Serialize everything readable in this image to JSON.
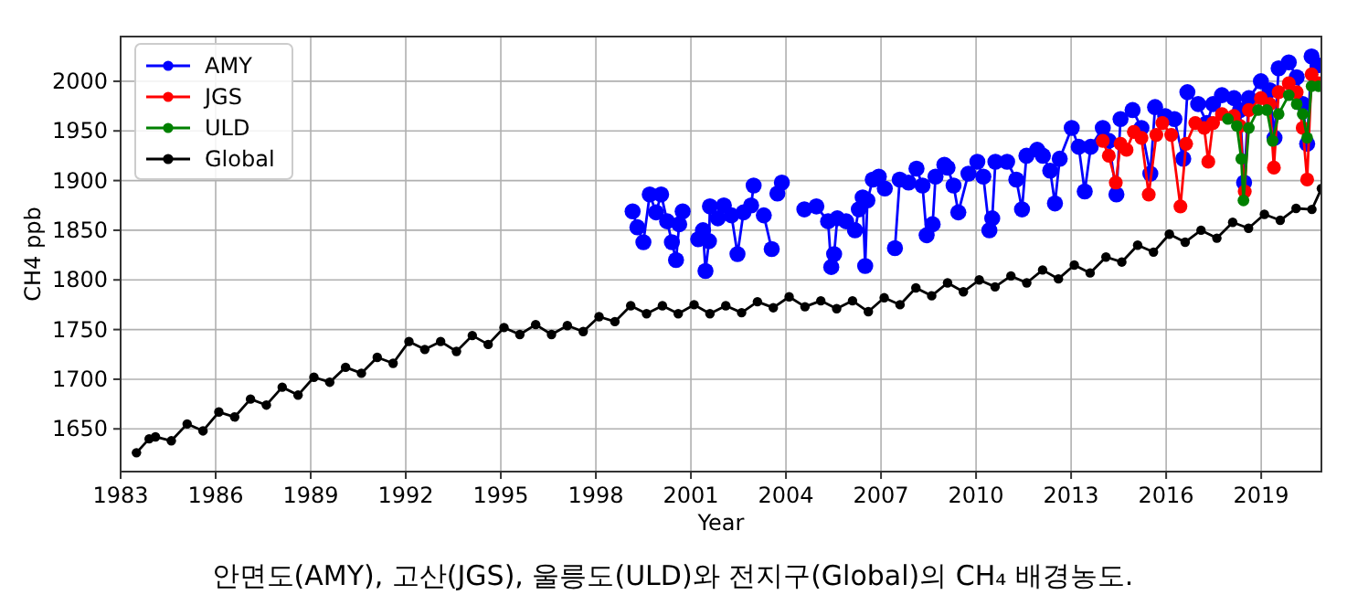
{
  "chart_data": {
    "type": "line",
    "xlabel": "Year",
    "ylabel": "CH4 ppb",
    "xlim": [
      1983,
      2020.9
    ],
    "ylim": [
      1607,
      2045
    ],
    "xticks": [
      1983,
      1986,
      1989,
      1992,
      1995,
      1998,
      2001,
      2004,
      2007,
      2010,
      2013,
      2016,
      2019
    ],
    "yticks": [
      1650,
      1700,
      1750,
      1800,
      1850,
      1900,
      1950,
      2000
    ],
    "grid": true,
    "legend": "top left",
    "marker": "circle",
    "line_style": "solid",
    "annotations": [
      "안면도(AMY), 고산(JGS), 울릉도(ULD)와 전지구(Global)의 CH₄ 배경농도."
    ],
    "series": [
      {
        "name": "AMY",
        "color": "#0000ff",
        "x": [
          1999.16,
          1999.31,
          1999.5,
          1999.7,
          1999.9,
          2000.06,
          2000.25,
          2000.4,
          2000.53,
          2000.63,
          2000.74,
          2000.98,
          2001.23,
          2001.38,
          2001.46,
          2001.57,
          2001.6,
          2001.85,
          2002.04,
          2002.28,
          2002.47,
          2002.66,
          2002.9,
          2002.98,
          2003.15,
          2003.3,
          2003.55,
          2003.65,
          2003.73,
          2003.87,
          2004.2,
          2004.58,
          2004.96,
          2005.33,
          2005.43,
          2005.52,
          2005.62,
          2005.75,
          2005.9,
          2006.18,
          2006.3,
          2006.42,
          2006.5,
          2006.57,
          2006.74,
          2006.93,
          2007.12,
          2007.3,
          2007.44,
          2007.59,
          2007.87,
          2008.12,
          2008.31,
          2008.44,
          2008.63,
          2008.72,
          2009.0,
          2009.1,
          2009.29,
          2009.44,
          2009.76,
          2010.04,
          2010.23,
          2010.42,
          2010.51,
          2010.61,
          2010.98,
          2011.27,
          2011.45,
          2011.59,
          2011.93,
          2012.11,
          2012.34,
          2012.49,
          2012.64,
          2013.02,
          2013.24,
          2013.43,
          2013.62,
          2014.0,
          2014.19,
          2014.43,
          2014.56,
          2014.94,
          2015.22,
          2015.5,
          2015.65,
          2015.97,
          2016.26,
          2016.54,
          2016.67,
          2017.01,
          2017.29,
          2017.48,
          2017.76,
          2018.14,
          2018.33,
          2018.46,
          2018.61,
          2018.99,
          2019.27,
          2019.42,
          2019.55,
          2019.87,
          2020.12,
          2020.31,
          2020.45,
          2020.59,
          2020.78
        ],
        "values": [
          1869,
          1853,
          1838,
          1886,
          1868,
          1886,
          1859,
          1838,
          1820,
          1856,
          1869,
          null,
          1841,
          1850,
          1809,
          1839,
          1874,
          1862,
          1875,
          1865,
          1826,
          1868,
          1875,
          1895,
          null,
          1865,
          1831,
          null,
          1887,
          1898,
          null,
          1871,
          1874,
          1859,
          1813,
          1826,
          1862,
          null,
          1859,
          1850,
          1871,
          1883,
          1814,
          1880,
          1901,
          1904,
          1892,
          null,
          1832,
          1901,
          1898,
          1912,
          1895,
          1845,
          1856,
          1904,
          1916,
          1913,
          1895,
          1868,
          1907,
          1919,
          1904,
          1850,
          1862,
          1919,
          1919,
          1901,
          1871,
          1925,
          1931,
          1925,
          1910,
          1877,
          1922,
          1953,
          1934,
          1889,
          1934,
          1953,
          1940,
          1886,
          1962,
          1971,
          1953,
          1907,
          1974,
          1965,
          1962,
          1922,
          1989,
          1977,
          1958,
          1977,
          1986,
          1983,
          1971,
          1898,
          1983,
          2000,
          1991,
          1943,
          2013,
          2019,
          2004,
          1977,
          1937,
          2025,
          2016
        ]
      },
      {
        "name": "JGS",
        "color": "#ff0000",
        "x": [
          2014.0,
          2014.19,
          2014.41,
          2014.56,
          2014.75,
          2014.98,
          2015.22,
          2015.45,
          2015.69,
          2015.88,
          2016.16,
          2016.45,
          2016.63,
          2016.92,
          2017.2,
          2017.33,
          2017.48,
          2017.76,
          2018.14,
          2018.33,
          2018.48,
          2018.61,
          2018.99,
          2019.27,
          2019.4,
          2019.55,
          2019.87,
          2020.12,
          2020.31,
          2020.45,
          2020.59,
          2020.81
        ],
        "values": [
          1940,
          1925,
          1898,
          1937,
          1931,
          1949,
          1943,
          1886,
          1946,
          1958,
          1946,
          1874,
          1937,
          1958,
          1953,
          1919,
          1958,
          1967,
          1965,
          1955,
          1889,
          1971,
          1983,
          1977,
          1913,
          1989,
          1998,
          1989,
          1953,
          1901,
          2007,
          1998
        ]
      },
      {
        "name": "ULD",
        "color": "#008000",
        "x": [
          2017.95,
          2018.23,
          2018.37,
          2018.44,
          2018.61,
          2018.9,
          2019.18,
          2019.36,
          2019.55,
          2019.87,
          2020.12,
          2020.31,
          2020.45,
          2020.59,
          2020.81
        ],
        "values": [
          1962,
          1955,
          1922,
          1880,
          1953,
          1971,
          1971,
          1940,
          1967,
          1986,
          1977,
          1967,
          1943,
          1995,
          1995
        ]
      },
      {
        "name": "Global",
        "color": "#000000",
        "x": [
          1983.5,
          1983.9,
          1984.1,
          1984.6,
          1985.1,
          1985.6,
          1986.1,
          1986.6,
          1987.1,
          1987.6,
          1988.1,
          1988.6,
          1989.1,
          1989.6,
          1990.1,
          1990.6,
          1991.1,
          1991.6,
          1992.1,
          1992.6,
          1993.1,
          1993.6,
          1994.1,
          1994.6,
          1995.1,
          1995.6,
          1996.1,
          1996.6,
          1997.1,
          1997.6,
          1998.1,
          1998.6,
          1999.1,
          1999.6,
          2000.1,
          2000.6,
          2001.1,
          2001.6,
          2002.1,
          2002.6,
          2003.1,
          2003.6,
          2004.1,
          2004.6,
          2005.1,
          2005.6,
          2006.1,
          2006.6,
          2007.1,
          2007.6,
          2008.1,
          2008.6,
          2009.1,
          2009.6,
          2010.1,
          2010.6,
          2011.1,
          2011.6,
          2012.1,
          2012.6,
          2013.1,
          2013.6,
          2014.1,
          2014.6,
          2015.1,
          2015.6,
          2016.1,
          2016.6,
          2017.1,
          2017.6,
          2018.1,
          2018.6,
          2019.1,
          2019.6,
          2020.1,
          2020.6,
          2020.9
        ],
        "values": [
          1626,
          1640,
          1642,
          1638,
          1655,
          1648,
          1667,
          1662,
          1680,
          1674,
          1692,
          1684,
          1702,
          1697,
          1712,
          1706,
          1722,
          1716,
          1738,
          1730,
          1738,
          1728,
          1744,
          1735,
          1752,
          1745,
          1755,
          1745,
          1754,
          1748,
          1763,
          1758,
          1774,
          1766,
          1774,
          1766,
          1775,
          1766,
          1774,
          1767,
          1778,
          1772,
          1783,
          1773,
          1779,
          1771,
          1779,
          1768,
          1782,
          1775,
          1792,
          1784,
          1797,
          1788,
          1800,
          1793,
          1804,
          1797,
          1810,
          1801,
          1815,
          1807,
          1823,
          1818,
          1835,
          1828,
          1846,
          1838,
          1850,
          1842,
          1858,
          1852,
          1866,
          1860,
          1872,
          1871,
          1892
        ]
      }
    ]
  }
}
